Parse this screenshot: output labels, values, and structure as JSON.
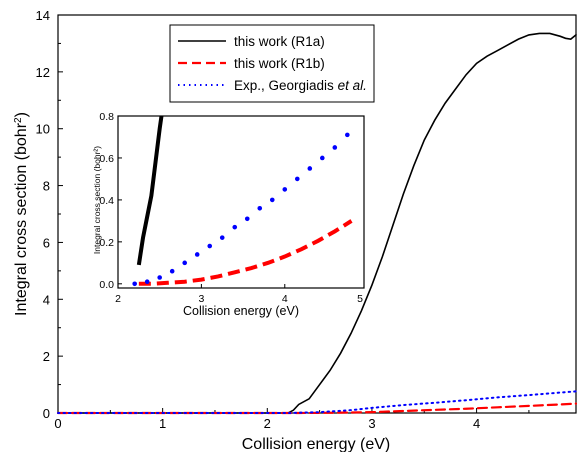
{
  "chart_data": [
    {
      "type": "line",
      "xlabel": "Collision energy (eV)",
      "ylabel_prefix": "Integral cross section (bohr",
      "ylabel_sup": "2",
      "ylabel_suffix": ")",
      "xlim": [
        0,
        4.95
      ],
      "ylim": [
        0,
        14
      ],
      "xticks": [
        0,
        1,
        2,
        3,
        4
      ],
      "yticks": [
        0,
        2,
        4,
        6,
        8,
        10,
        12,
        14
      ],
      "grid": false,
      "legend_placement": "top-center",
      "legend": [
        {
          "label": "this work (R1a)",
          "style": "solid",
          "color": "#000000",
          "series": 0
        },
        {
          "label": "this work (R1b)",
          "style": "dashed",
          "color": "#ff0000",
          "series": 1
        },
        {
          "label_prefix": "Exp., Georgiadis ",
          "label_italic": "et al.",
          "style": "dotted",
          "color": "#0000ff",
          "series": 2
        }
      ],
      "series": [
        {
          "name": "this work (R1a)",
          "color": "#000000",
          "style": "solid",
          "x": [
            0.0,
            2.2,
            2.25,
            2.3,
            2.4,
            2.5,
            2.6,
            2.7,
            2.8,
            2.9,
            3.0,
            3.1,
            3.2,
            3.3,
            3.4,
            3.5,
            3.6,
            3.7,
            3.8,
            3.9,
            4.0,
            4.1,
            4.2,
            4.3,
            4.4,
            4.5,
            4.6,
            4.7,
            4.8,
            4.85,
            4.9,
            4.95
          ],
          "values": [
            0.0,
            0.0,
            0.1,
            0.3,
            0.5,
            1.0,
            1.5,
            2.1,
            2.8,
            3.6,
            4.5,
            5.5,
            6.6,
            7.7,
            8.7,
            9.6,
            10.3,
            10.9,
            11.4,
            11.9,
            12.3,
            12.55,
            12.75,
            12.95,
            13.15,
            13.3,
            13.35,
            13.35,
            13.25,
            13.18,
            13.15,
            13.3
          ]
        },
        {
          "name": "this work (R1b)",
          "color": "#ff0000",
          "style": "dashed",
          "x": [
            0.0,
            2.3,
            2.5,
            2.7,
            3.0,
            3.3,
            3.6,
            3.9,
            4.2,
            4.5,
            4.8,
            4.95
          ],
          "values": [
            0.0,
            0.0,
            0.005,
            0.012,
            0.03,
            0.07,
            0.11,
            0.15,
            0.2,
            0.25,
            0.3,
            0.33
          ]
        },
        {
          "name": "Exp., Georgiadis et al.",
          "color": "#0000ff",
          "style": "dotted",
          "x": [
            0.0,
            0.5,
            1.0,
            1.5,
            2.0,
            2.2,
            2.5,
            2.8,
            3.0,
            3.3,
            3.6,
            3.9,
            4.2,
            4.5,
            4.8,
            4.95
          ],
          "values": [
            0.0,
            0.0,
            0.0,
            0.0,
            0.0,
            0.0,
            0.03,
            0.1,
            0.18,
            0.28,
            0.36,
            0.45,
            0.55,
            0.63,
            0.72,
            0.76
          ]
        }
      ]
    },
    {
      "type": "scatter",
      "xlabel": "Collision energy (eV)",
      "ylabel": "Integral cross section (bohr²)",
      "xlim": [
        2,
        4.95
      ],
      "ylim": [
        -0.02,
        0.8
      ],
      "xticks": [
        2,
        3,
        4,
        5
      ],
      "yticks": [
        0.0,
        0.2,
        0.4,
        0.6,
        0.8
      ],
      "xtick_labels": [
        "2",
        "3",
        "4",
        "5"
      ],
      "ytick_labels": [
        "0.0",
        "0.2",
        "0.4",
        "0.6",
        "0.8"
      ],
      "grid": false,
      "series": [
        {
          "name": "this work (R1a)",
          "color": "#000000",
          "style": "thick-solid",
          "x": [
            2.25,
            2.3,
            2.35,
            2.4,
            2.45,
            2.5,
            2.55
          ],
          "values": [
            0.09,
            0.22,
            0.32,
            0.42,
            0.58,
            0.74,
            0.88
          ]
        },
        {
          "name": "this work (R1b)",
          "color": "#ff0000",
          "style": "thick-dashed",
          "x": [
            2.25,
            2.4,
            2.6,
            2.8,
            3.0,
            3.2,
            3.4,
            3.6,
            3.8,
            4.0,
            4.2,
            4.4,
            4.6,
            4.8
          ],
          "values": [
            0.0,
            0.0,
            0.005,
            0.01,
            0.02,
            0.035,
            0.055,
            0.075,
            0.1,
            0.13,
            0.165,
            0.205,
            0.25,
            0.3
          ]
        },
        {
          "name": "Exp., Georgiadis et al.",
          "color": "#0000ff",
          "style": "dots",
          "x": [
            2.2,
            2.35,
            2.5,
            2.65,
            2.8,
            2.95,
            3.1,
            3.25,
            3.4,
            3.55,
            3.7,
            3.85,
            4.0,
            4.15,
            4.3,
            4.45,
            4.6,
            4.75
          ],
          "values": [
            0.0,
            0.01,
            0.03,
            0.06,
            0.1,
            0.14,
            0.18,
            0.22,
            0.27,
            0.31,
            0.36,
            0.4,
            0.45,
            0.5,
            0.55,
            0.6,
            0.65,
            0.71
          ]
        }
      ]
    }
  ]
}
